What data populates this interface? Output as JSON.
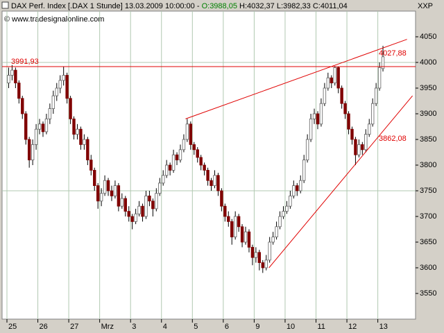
{
  "chart_data": {
    "type": "candlestick",
    "header": {
      "title": "DAX Perf. Index [.DAX  1 Stunde] 13.03.2009 10:00:00 -",
      "open_text": "O:3988,05",
      "rest_text": "H:4032,37 L:3982,33 C:4011,04"
    },
    "watermark": "© www.tradesignalonline.com",
    "corner_label": "XXP",
    "categories": [
      "25",
      null,
      null,
      null,
      null,
      null,
      null,
      null,
      null,
      "26",
      null,
      null,
      null,
      null,
      null,
      null,
      null,
      null,
      "27",
      null,
      null,
      null,
      null,
      null,
      null,
      null,
      null,
      "Mrz",
      null,
      null,
      null,
      null,
      null,
      null,
      null,
      null,
      "3",
      null,
      null,
      null,
      null,
      null,
      null,
      null,
      null,
      "4",
      null,
      null,
      null,
      null,
      null,
      null,
      null,
      null,
      "5",
      null,
      null,
      null,
      null,
      null,
      null,
      null,
      null,
      "6",
      null,
      null,
      null,
      null,
      null,
      null,
      null,
      null,
      "9",
      null,
      null,
      null,
      null,
      null,
      null,
      null,
      null,
      "10",
      null,
      null,
      null,
      null,
      null,
      null,
      null,
      null,
      "11",
      null,
      null,
      null,
      null,
      null,
      null,
      null,
      null,
      "12",
      null,
      null,
      null,
      null,
      null,
      null,
      null,
      null,
      "13",
      null
    ],
    "open": [
      3960,
      3975,
      3985,
      3960,
      3930,
      3900,
      3850,
      3810,
      3840,
      3870,
      3880,
      3865,
      3890,
      3910,
      3935,
      3950,
      3965,
      3975,
      3930,
      3890,
      3860,
      3870,
      3840,
      3850,
      3810,
      3790,
      3760,
      3730,
      3745,
      3770,
      3750,
      3740,
      3760,
      3720,
      3735,
      3710,
      3700,
      3690,
      3705,
      3720,
      3700,
      3740,
      3730,
      3715,
      3745,
      3765,
      3780,
      3800,
      3790,
      3820,
      3810,
      3830,
      3850,
      3880,
      3840,
      3830,
      3815,
      3800,
      3790,
      3770,
      3760,
      3780,
      3750,
      3720,
      3700,
      3690,
      3660,
      3700,
      3680,
      3650,
      3670,
      3640,
      3620,
      3630,
      3610,
      3600,
      3615,
      3650,
      3660,
      3680,
      3700,
      3710,
      3720,
      3740,
      3760,
      3750,
      3770,
      3810,
      3850,
      3890,
      3900,
      3880,
      3920,
      3950,
      3970,
      3960,
      3990,
      3950,
      3920,
      3900,
      3870,
      3850,
      3820,
      3840,
      3830,
      3860,
      3880,
      3920,
      3950,
      3988.05
    ],
    "high": [
      3990,
      3995,
      3990,
      3965,
      3935,
      3905,
      3855,
      3850,
      3880,
      3890,
      3885,
      3900,
      3920,
      3945,
      3960,
      3975,
      3992,
      3980,
      3935,
      3895,
      3880,
      3875,
      3860,
      3855,
      3820,
      3795,
      3765,
      3755,
      3780,
      3775,
      3760,
      3770,
      3765,
      3745,
      3740,
      3720,
      3705,
      3715,
      3730,
      3725,
      3750,
      3750,
      3735,
      3755,
      3775,
      3790,
      3810,
      3805,
      3830,
      3825,
      3840,
      3860,
      3890,
      3885,
      3845,
      3835,
      3820,
      3805,
      3795,
      3775,
      3790,
      3785,
      3755,
      3725,
      3710,
      3695,
      3710,
      3705,
      3685,
      3680,
      3675,
      3645,
      3640,
      3635,
      3615,
      3625,
      3660,
      3670,
      3690,
      3710,
      3720,
      3730,
      3750,
      3770,
      3765,
      3780,
      3820,
      3860,
      3900,
      3910,
      3905,
      3930,
      3960,
      3980,
      3975,
      3993,
      3992,
      3955,
      3925,
      3905,
      3875,
      3855,
      3850,
      3845,
      3870,
      3890,
      3930,
      3960,
      4000,
      4032.37
    ],
    "low": [
      3950,
      3965,
      3950,
      3920,
      3890,
      3840,
      3795,
      3800,
      3830,
      3860,
      3855,
      3860,
      3880,
      3900,
      3925,
      3940,
      3955,
      3920,
      3880,
      3850,
      3850,
      3830,
      3830,
      3800,
      3780,
      3750,
      3715,
      3720,
      3740,
      3740,
      3730,
      3735,
      3710,
      3715,
      3700,
      3690,
      3675,
      3685,
      3700,
      3690,
      3695,
      3720,
      3700,
      3710,
      3740,
      3760,
      3775,
      3780,
      3785,
      3800,
      3805,
      3825,
      3845,
      3830,
      3820,
      3805,
      3790,
      3780,
      3760,
      3750,
      3755,
      3740,
      3710,
      3690,
      3680,
      3645,
      3655,
      3670,
      3640,
      3645,
      3630,
      3605,
      3610,
      3595,
      3590,
      3595,
      3610,
      3645,
      3655,
      3675,
      3695,
      3705,
      3715,
      3735,
      3740,
      3745,
      3765,
      3805,
      3845,
      3880,
      3870,
      3875,
      3915,
      3945,
      3950,
      3955,
      3940,
      3910,
      3890,
      3860,
      3840,
      3800,
      3815,
      3820,
      3825,
      3855,
      3875,
      3915,
      3945,
      3982.33
    ],
    "close": [
      3975,
      3985,
      3960,
      3930,
      3900,
      3850,
      3810,
      3840,
      3870,
      3880,
      3865,
      3890,
      3910,
      3935,
      3950,
      3965,
      3975,
      3930,
      3890,
      3860,
      3870,
      3840,
      3850,
      3810,
      3790,
      3760,
      3730,
      3745,
      3770,
      3750,
      3740,
      3760,
      3720,
      3735,
      3710,
      3700,
      3690,
      3705,
      3720,
      3700,
      3740,
      3730,
      3715,
      3745,
      3765,
      3780,
      3800,
      3790,
      3820,
      3810,
      3830,
      3850,
      3880,
      3840,
      3830,
      3815,
      3800,
      3790,
      3770,
      3760,
      3780,
      3750,
      3720,
      3700,
      3690,
      3660,
      3700,
      3680,
      3650,
      3670,
      3640,
      3620,
      3630,
      3610,
      3600,
      3615,
      3650,
      3660,
      3680,
      3700,
      3710,
      3720,
      3740,
      3760,
      3750,
      3770,
      3810,
      3850,
      3890,
      3900,
      3880,
      3920,
      3950,
      3970,
      3960,
      3990,
      3950,
      3920,
      3900,
      3870,
      3850,
      3820,
      3840,
      3830,
      3860,
      3880,
      3920,
      3950,
      3990,
      4011.04
    ],
    "up_color": "#ffffff",
    "down_color": "#800000",
    "wick_color": "#000000",
    "ylim": [
      3500,
      4100
    ],
    "yticks": [
      3550,
      3600,
      3650,
      3700,
      3750,
      3800,
      3850,
      3900,
      3950,
      4000,
      4050
    ],
    "grid_y": [
      3750,
      4000
    ],
    "hline": {
      "value": 3991.93,
      "label": "3991,93",
      "color": "#e00000"
    },
    "trend_lines": [
      {
        "from": [
          51.5,
          3890
        ],
        "to": [
          116,
          4045
        ],
        "label": "4027,88",
        "color": "#e00000"
      },
      {
        "from": [
          75.8,
          3600
        ],
        "to": [
          117.6,
          3935
        ],
        "label": "3862,08",
        "color": "#e00000"
      }
    ]
  }
}
